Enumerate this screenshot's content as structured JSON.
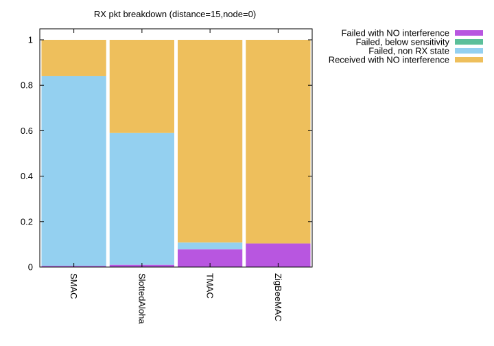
{
  "chart_data": {
    "type": "bar",
    "stacked": true,
    "normalized": true,
    "title": "RX pkt breakdown (distance=15,node=0)",
    "xlabel": "",
    "ylabel": "",
    "categories": [
      "SMAC",
      "SlottedAloha",
      "TMAC",
      "ZigBeeMAC"
    ],
    "ylim": [
      0,
      1.05
    ],
    "yticks": [
      {
        "value": 0,
        "label": "0"
      },
      {
        "value": 0.2,
        "label": "0.2"
      },
      {
        "value": 0.4,
        "label": "0.4"
      },
      {
        "value": 0.6,
        "label": "0.6"
      },
      {
        "value": 0.8,
        "label": "0.8"
      },
      {
        "value": 1,
        "label": "1"
      }
    ],
    "grid": false,
    "legend_position": "outside-top-right",
    "series": [
      {
        "name": "Failed with NO interference",
        "color": "#b856e0",
        "values": [
          0.005,
          0.01,
          0.078,
          0.104
        ]
      },
      {
        "name": "Failed, below sensitivity",
        "color": "#5bbf9a",
        "values": [
          0,
          0,
          0,
          0
        ]
      },
      {
        "name": "Failed, non RX state",
        "color": "#94d0f0",
        "values": [
          0.835,
          0.58,
          0.03,
          0
        ]
      },
      {
        "name": "Received with NO interference",
        "color": "#eebf5c",
        "values": [
          0.16,
          0.41,
          0.892,
          0.896
        ]
      }
    ]
  }
}
